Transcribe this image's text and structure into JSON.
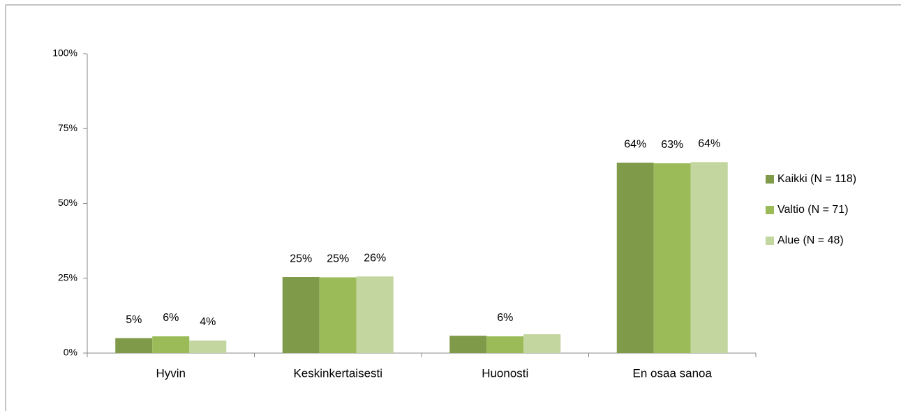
{
  "chart_data": {
    "type": "bar",
    "categories": [
      "Hyvin",
      "Keskinkertaisesti",
      "Huonosti",
      "En osaa sanoa"
    ],
    "series": [
      {
        "name": "Kaikki (N = 118)",
        "color": "#7f9a48",
        "values": [
          5,
          25.4,
          5.8,
          63.6
        ],
        "value_labels": [
          "5%",
          "25%",
          null,
          "64%"
        ]
      },
      {
        "name": "Valtio (N = 71)",
        "color": "#9bbb59",
        "values": [
          5.6,
          25.3,
          5.6,
          63.4
        ],
        "value_labels": [
          "6%",
          "25%",
          "6%",
          "63%"
        ]
      },
      {
        "name": "Alue (N = 48)",
        "color": "#c4d6a0",
        "values": [
          4.2,
          25.6,
          6.3,
          63.8
        ],
        "value_labels": [
          "4%",
          "26%",
          null,
          "64%"
        ]
      }
    ],
    "ylim": [
      0,
      100
    ],
    "yticks": [
      {
        "value": 0,
        "label": "0%"
      },
      {
        "value": 25,
        "label": "25%"
      },
      {
        "value": 50,
        "label": "50%"
      },
      {
        "value": 75,
        "label": "75%"
      },
      {
        "value": 100,
        "label": "100%"
      }
    ],
    "legend": "right"
  }
}
